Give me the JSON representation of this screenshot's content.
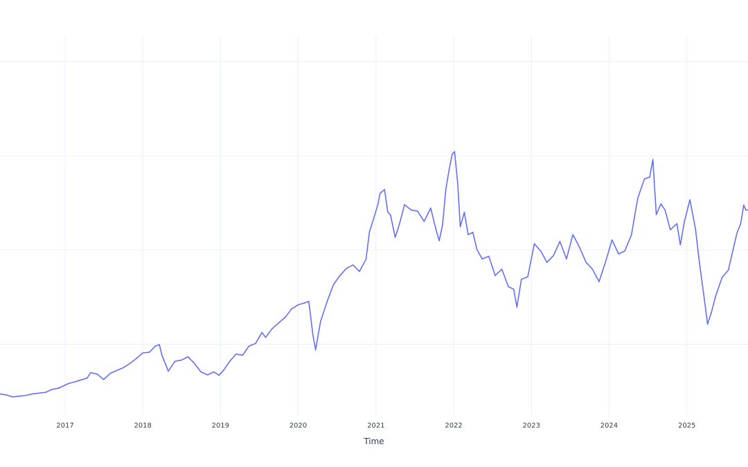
{
  "chart_data": {
    "type": "line",
    "title": "",
    "xlabel": "Time",
    "ylabel": "",
    "x_tick_labels": [
      "2017",
      "2018",
      "2019",
      "2020",
      "2021",
      "2022",
      "2023",
      "2024",
      "2025"
    ],
    "xlim": [
      "2016-03-01",
      "2025-10-15"
    ],
    "ylim": [
      0,
      100
    ],
    "y_gridlines": [
      18.7,
      43.6,
      68.4,
      93.3
    ],
    "grid": true,
    "legend": "none",
    "series": [
      {
        "color": "#636efa",
        "x": [
          "2016-03-01",
          "2016-04-01",
          "2016-05-01",
          "2016-06-01",
          "2016-07-01",
          "2016-08-01",
          "2016-09-01",
          "2016-10-01",
          "2016-11-01",
          "2016-12-01",
          "2017-01-15",
          "2017-03-01",
          "2017-04-15",
          "2017-05-01",
          "2017-06-01",
          "2017-07-01",
          "2017-08-01",
          "2017-09-01",
          "2017-10-01",
          "2017-11-01",
          "2017-12-01",
          "2018-01-01",
          "2018-02-01",
          "2018-03-01",
          "2018-03-20",
          "2018-04-01",
          "2018-05-01",
          "2018-06-01",
          "2018-07-01",
          "2018-08-01",
          "2018-09-01",
          "2018-10-01",
          "2018-11-01",
          "2018-12-01",
          "2018-12-25",
          "2019-01-15",
          "2019-02-15",
          "2019-03-15",
          "2019-04-15",
          "2019-05-15",
          "2019-06-15",
          "2019-07-15",
          "2019-08-01",
          "2019-09-01",
          "2019-10-01",
          "2019-11-01",
          "2019-12-01",
          "2020-01-01",
          "2020-02-01",
          "2020-02-20",
          "2020-03-10",
          "2020-03-23",
          "2020-04-15",
          "2020-05-15",
          "2020-06-15",
          "2020-07-15",
          "2020-08-15",
          "2020-09-15",
          "2020-10-15",
          "2020-11-15",
          "2020-12-01",
          "2020-12-20",
          "2021-01-10",
          "2021-01-20",
          "2021-02-10",
          "2021-02-25",
          "2021-03-10",
          "2021-04-01",
          "2021-04-20",
          "2021-05-15",
          "2021-06-15",
          "2021-07-15",
          "2021-08-15",
          "2021-09-15",
          "2021-10-10",
          "2021-10-25",
          "2021-11-10",
          "2021-11-25",
          "2021-12-10",
          "2021-12-25",
          "2022-01-05",
          "2022-01-20",
          "2022-02-01",
          "2022-02-20",
          "2022-03-10",
          "2022-04-01",
          "2022-04-20",
          "2022-05-15",
          "2022-06-15",
          "2022-07-15",
          "2022-08-15",
          "2022-09-15",
          "2022-10-10",
          "2022-10-25",
          "2022-11-15",
          "2022-12-15",
          "2023-01-15",
          "2023-02-15",
          "2023-03-15",
          "2023-04-15",
          "2023-05-15",
          "2023-06-15",
          "2023-07-15",
          "2023-08-15",
          "2023-09-15",
          "2023-10-15",
          "2023-11-15",
          "2023-12-15",
          "2024-01-15",
          "2024-02-15",
          "2024-03-15",
          "2024-04-15",
          "2024-05-15",
          "2024-06-15",
          "2024-07-10",
          "2024-07-25",
          "2024-08-10",
          "2024-09-01",
          "2024-09-20",
          "2024-10-15",
          "2024-11-15",
          "2024-12-01",
          "2024-12-20",
          "2025-01-15",
          "2025-02-10",
          "2025-03-01",
          "2025-03-20",
          "2025-04-08",
          "2025-04-25",
          "2025-05-15",
          "2025-06-15",
          "2025-07-15",
          "2025-08-10",
          "2025-08-25",
          "2025-09-10",
          "2025-09-25",
          "2025-10-05",
          "2025-10-15"
        ],
        "y": [
          5.6,
          5.3,
          4.8,
          5.0,
          5.2,
          5.6,
          5.8,
          6.0,
          6.8,
          7.1,
          8.3,
          9.0,
          9.8,
          11.2,
          10.8,
          9.4,
          11.0,
          11.8,
          12.5,
          13.6,
          14.9,
          16.4,
          16.6,
          18.2,
          18.6,
          15.8,
          11.6,
          14.2,
          14.5,
          15.4,
          13.6,
          11.4,
          10.6,
          11.4,
          10.5,
          11.8,
          14.3,
          16.1,
          15.8,
          18.2,
          18.9,
          21.8,
          20.5,
          22.8,
          24.3,
          25.8,
          28.0,
          29.1,
          29.6,
          30.0,
          21.3,
          17.2,
          24.6,
          29.8,
          34.4,
          36.8,
          38.7,
          39.6,
          37.9,
          41.1,
          48.3,
          51.7,
          55.6,
          58.5,
          59.5,
          53.6,
          52.8,
          46.9,
          50.2,
          55.5,
          54.1,
          53.8,
          51.1,
          54.6,
          48.9,
          46.0,
          50.3,
          59.5,
          64.6,
          68.8,
          69.5,
          61.0,
          49.7,
          53.5,
          47.6,
          48.2,
          43.7,
          41.2,
          41.9,
          36.8,
          38.5,
          33.9,
          33.2,
          28.5,
          35.8,
          36.5,
          45.2,
          43.2,
          40.3,
          42.1,
          45.8,
          41.2,
          47.6,
          44.3,
          40.3,
          38.5,
          35.2,
          40.3,
          46.2,
          42.5,
          43.3,
          47.5,
          57.2,
          62.3,
          62.8,
          67.4,
          52.9,
          55.7,
          54.1,
          48.9,
          50.5,
          44.9,
          51.0,
          56.8,
          49.2,
          40.1,
          32.2,
          24.0,
          26.9,
          31.2,
          36.3,
          38.3,
          44.7,
          48.2,
          50.3,
          55.4,
          54.1,
          54.1
        ]
      }
    ]
  }
}
